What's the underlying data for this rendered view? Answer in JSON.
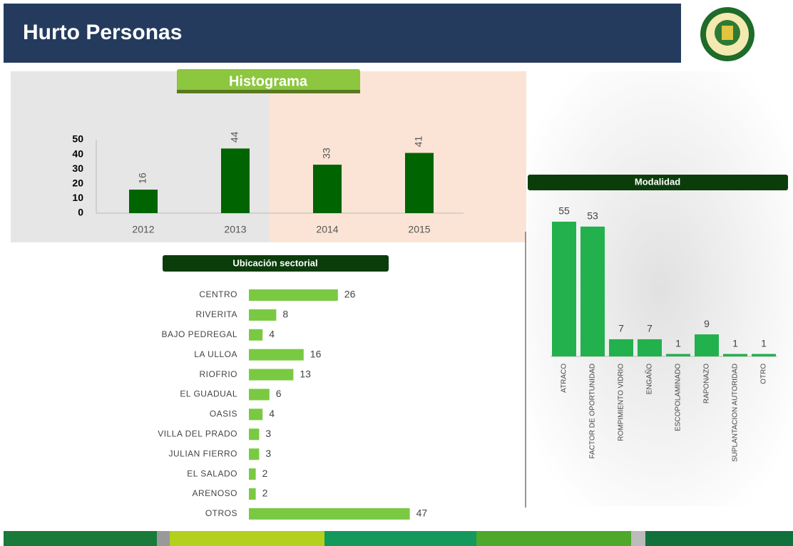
{
  "title": "Hurto Personas",
  "chart_data": [
    {
      "type": "bar",
      "title": "Histograma",
      "categories": [
        "2012",
        "2013",
        "2014",
        "2015"
      ],
      "values": [
        16,
        44,
        33,
        41
      ],
      "color": "#006400",
      "ylim": [
        0,
        50
      ],
      "yticks": [
        0,
        10,
        20,
        30,
        40,
        50
      ],
      "grid": false
    },
    {
      "type": "barh",
      "title": "Ubicación sectorial",
      "categories": [
        "CENTRO",
        "RIVERITA",
        "BAJO PEDREGAL",
        "LA ULLOA",
        "RIOFRIO",
        "EL GUADUAL",
        "OASIS",
        "VILLA DEL PRADO",
        "JULIAN FIERRO",
        "EL SALADO",
        "ARENOSO",
        "OTROS"
      ],
      "values": [
        26,
        8,
        4,
        16,
        13,
        6,
        4,
        3,
        3,
        2,
        2,
        47
      ],
      "color": "#7ac943"
    },
    {
      "type": "bar",
      "title": "Modalidad",
      "categories": [
        "ATRACO",
        "FACTOR DE OPORTUNIDAD",
        "ROMPIMIENTO VIDRIO",
        "ENGAÑO",
        "ESCOPOLAMINADO",
        "RAPONAZO",
        "SUPLANTACION AUTORIDAD",
        "OTRO"
      ],
      "values": [
        55,
        53,
        7,
        7,
        1,
        9,
        1,
        1
      ],
      "color": "#22b14c"
    }
  ]
}
